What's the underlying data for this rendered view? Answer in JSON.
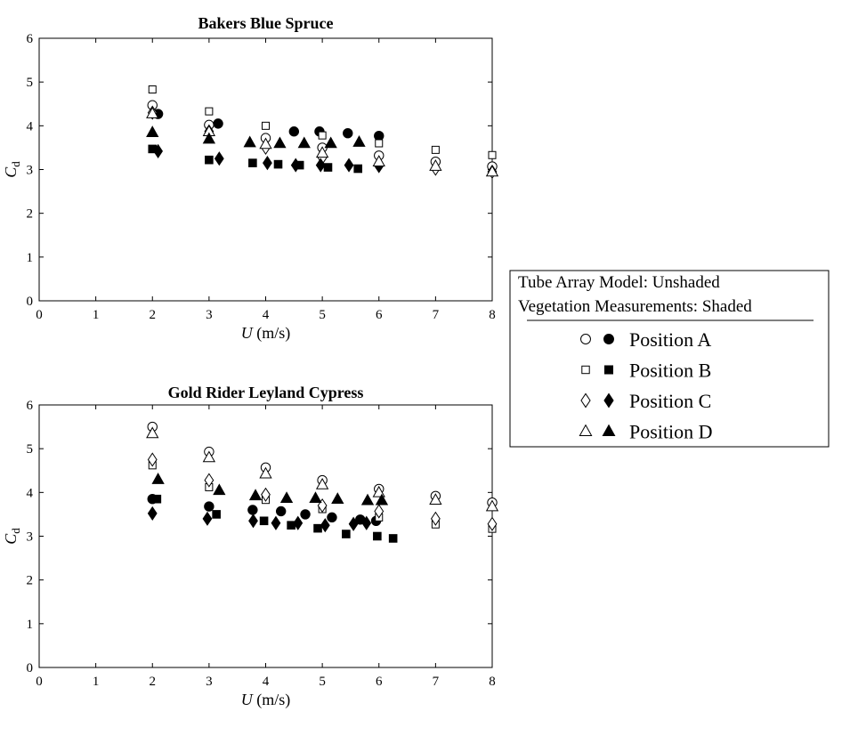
{
  "chart_data": [
    {
      "type": "scatter",
      "title": "Bakers Blue Spruce",
      "xlabel_var": "U",
      "xlabel_unit": " (m/s)",
      "ylabel_var": "C",
      "ylabel_sub": "d",
      "xlim": [
        0,
        8
      ],
      "ylim": [
        0,
        6
      ],
      "xticks": [
        "0",
        "1",
        "2",
        "3",
        "4",
        "5",
        "6",
        "7",
        "8"
      ],
      "yticks": [
        "0",
        "1",
        "2",
        "3",
        "4",
        "5",
        "6"
      ],
      "grid": false,
      "series": [
        {
          "name": "Position A",
          "filled": false,
          "marker": "circle",
          "points": [
            [
              2,
              4.47
            ],
            [
              3,
              4.02
            ],
            [
              4,
              3.72
            ],
            [
              5,
              3.5
            ],
            [
              6,
              3.32
            ],
            [
              7,
              3.18
            ],
            [
              8,
              3.07
            ]
          ]
        },
        {
          "name": "Position A",
          "filled": true,
          "marker": "circle",
          "points": [
            [
              2.1,
              4.27
            ],
            [
              3.16,
              4.05
            ],
            [
              4.5,
              3.87
            ],
            [
              4.95,
              3.87
            ],
            [
              5.45,
              3.83
            ],
            [
              6,
              3.77
            ]
          ]
        },
        {
          "name": "Position B",
          "filled": false,
          "marker": "square",
          "points": [
            [
              2,
              4.83
            ],
            [
              3,
              4.33
            ],
            [
              4,
              4.0
            ],
            [
              5,
              3.78
            ],
            [
              6,
              3.6
            ],
            [
              7,
              3.45
            ],
            [
              8,
              3.33
            ]
          ]
        },
        {
          "name": "Position B",
          "filled": true,
          "marker": "square",
          "points": [
            [
              2,
              3.47
            ],
            [
              3,
              3.22
            ],
            [
              3.77,
              3.15
            ],
            [
              4.22,
              3.12
            ],
            [
              4.6,
              3.1
            ],
            [
              5.1,
              3.05
            ],
            [
              5.63,
              3.02
            ]
          ]
        },
        {
          "name": "Position C",
          "filled": false,
          "marker": "diamond",
          "points": [
            [
              2,
              4.3
            ],
            [
              3,
              3.87
            ],
            [
              4,
              3.5
            ],
            [
              5,
              3.27
            ],
            [
              6,
              3.1
            ],
            [
              7,
              3.02
            ],
            [
              8,
              2.95
            ]
          ]
        },
        {
          "name": "Position C",
          "filled": true,
          "marker": "diamond",
          "points": [
            [
              2.1,
              3.42
            ],
            [
              3.18,
              3.25
            ],
            [
              4.03,
              3.15
            ],
            [
              4.53,
              3.1
            ],
            [
              4.97,
              3.1
            ],
            [
              5.47,
              3.1
            ],
            [
              6,
              3.08
            ]
          ]
        },
        {
          "name": "Position D",
          "filled": false,
          "marker": "triangle",
          "points": [
            [
              2,
              4.28
            ],
            [
              3,
              3.87
            ],
            [
              4,
              3.58
            ],
            [
              5,
              3.38
            ],
            [
              6,
              3.18
            ],
            [
              7,
              3.08
            ],
            [
              8,
              2.95
            ]
          ]
        },
        {
          "name": "Position D",
          "filled": true,
          "marker": "triangle",
          "points": [
            [
              2,
              3.85
            ],
            [
              3,
              3.7
            ],
            [
              3.72,
              3.62
            ],
            [
              4.25,
              3.6
            ],
            [
              4.68,
              3.6
            ],
            [
              5.15,
              3.6
            ],
            [
              5.65,
              3.63
            ]
          ]
        }
      ]
    },
    {
      "type": "scatter",
      "title": "Gold Rider Leyland Cypress",
      "xlabel_var": "U",
      "xlabel_unit": " (m/s)",
      "ylabel_var": "C",
      "ylabel_sub": "d",
      "xlim": [
        0,
        8
      ],
      "ylim": [
        0,
        6
      ],
      "xticks": [
        "0",
        "1",
        "2",
        "3",
        "4",
        "5",
        "6",
        "7",
        "8"
      ],
      "yticks": [
        "0",
        "1",
        "2",
        "3",
        "4",
        "5",
        "6"
      ],
      "grid": false,
      "series": [
        {
          "name": "Position A",
          "filled": false,
          "marker": "circle",
          "points": [
            [
              2,
              5.5
            ],
            [
              3,
              4.93
            ],
            [
              4,
              4.57
            ],
            [
              5,
              4.28
            ],
            [
              6,
              4.08
            ],
            [
              7,
              3.92
            ],
            [
              8,
              3.77
            ]
          ]
        },
        {
          "name": "Position A",
          "filled": true,
          "marker": "circle",
          "points": [
            [
              2,
              3.85
            ],
            [
              3,
              3.68
            ],
            [
              3.77,
              3.6
            ],
            [
              4.27,
              3.57
            ],
            [
              4.7,
              3.5
            ],
            [
              5.17,
              3.43
            ],
            [
              5.67,
              3.38
            ],
            [
              5.95,
              3.35
            ]
          ]
        },
        {
          "name": "Position B",
          "filled": false,
          "marker": "square",
          "points": [
            [
              2,
              4.62
            ],
            [
              3,
              4.12
            ],
            [
              4,
              3.83
            ],
            [
              5,
              3.62
            ],
            [
              6,
              3.43
            ],
            [
              7,
              3.27
            ],
            [
              8,
              3.17
            ]
          ]
        },
        {
          "name": "Position B",
          "filled": true,
          "marker": "square",
          "points": [
            [
              2.08,
              3.85
            ],
            [
              3.13,
              3.5
            ],
            [
              3.97,
              3.35
            ],
            [
              4.45,
              3.25
            ],
            [
              4.92,
              3.18
            ],
            [
              5.42,
              3.05
            ],
            [
              5.97,
              3.0
            ],
            [
              6.25,
              2.95
            ]
          ]
        },
        {
          "name": "Position C",
          "filled": false,
          "marker": "diamond",
          "points": [
            [
              2,
              4.75
            ],
            [
              3,
              4.28
            ],
            [
              4,
              3.95
            ],
            [
              5,
              3.7
            ],
            [
              6,
              3.57
            ],
            [
              7,
              3.4
            ],
            [
              8,
              3.28
            ]
          ]
        },
        {
          "name": "Position C",
          "filled": true,
          "marker": "diamond",
          "points": [
            [
              2,
              3.52
            ],
            [
              2.97,
              3.4
            ],
            [
              3.78,
              3.35
            ],
            [
              4.18,
              3.3
            ],
            [
              4.57,
              3.3
            ],
            [
              5.05,
              3.25
            ],
            [
              5.55,
              3.28
            ],
            [
              5.78,
              3.3
            ]
          ]
        },
        {
          "name": "Position D",
          "filled": false,
          "marker": "triangle",
          "points": [
            [
              2,
              5.35
            ],
            [
              3,
              4.8
            ],
            [
              4,
              4.43
            ],
            [
              5,
              4.18
            ],
            [
              6,
              4.0
            ],
            [
              7,
              3.83
            ],
            [
              8,
              3.68
            ]
          ]
        },
        {
          "name": "Position D",
          "filled": true,
          "marker": "triangle",
          "points": [
            [
              2.1,
              4.3
            ],
            [
              3.18,
              4.05
            ],
            [
              3.82,
              3.93
            ],
            [
              4.37,
              3.87
            ],
            [
              4.88,
              3.87
            ],
            [
              5.27,
              3.85
            ],
            [
              5.8,
              3.82
            ],
            [
              6.05,
              3.82
            ]
          ]
        }
      ]
    }
  ],
  "legend": {
    "header_line1": "Tube Array Model: Unshaded",
    "header_line2": "Vegetation Measurements: Shaded",
    "placement": "right",
    "entries": [
      {
        "label": "Position A",
        "marker": "circle"
      },
      {
        "label": "Position B",
        "marker": "square"
      },
      {
        "label": "Position C",
        "marker": "diamond"
      },
      {
        "label": "Position D",
        "marker": "triangle"
      }
    ]
  }
}
